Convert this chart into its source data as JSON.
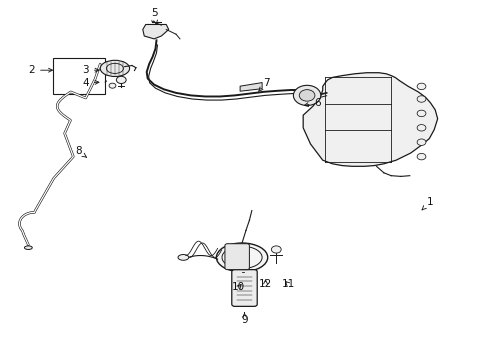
{
  "bg_color": "#ffffff",
  "fig_width": 4.89,
  "fig_height": 3.6,
  "dpi": 100,
  "line_color": "#1a1a1a",
  "line_width": 1.0,
  "label_positions": {
    "1": [
      0.88,
      0.56,
      0.858,
      0.59
    ],
    "2": [
      0.065,
      0.195,
      0.115,
      0.195
    ],
    "3": [
      0.175,
      0.195,
      0.21,
      0.195
    ],
    "4": [
      0.175,
      0.23,
      0.21,
      0.228
    ],
    "5": [
      0.315,
      0.035,
      0.32,
      0.07
    ],
    "6": [
      0.65,
      0.285,
      0.615,
      0.295
    ],
    "7": [
      0.545,
      0.23,
      0.528,
      0.255
    ],
    "8": [
      0.16,
      0.42,
      0.178,
      0.438
    ],
    "9": [
      0.5,
      0.89,
      0.5,
      0.868
    ],
    "10": [
      0.488,
      0.798,
      0.498,
      0.782
    ],
    "11": [
      0.59,
      0.79,
      0.578,
      0.775
    ],
    "12": [
      0.543,
      0.79,
      0.543,
      0.775
    ]
  }
}
